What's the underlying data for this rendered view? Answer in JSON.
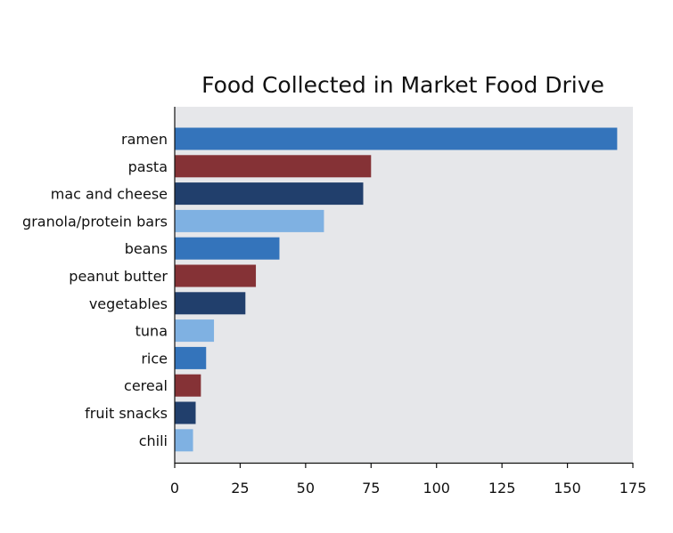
{
  "chart_data": {
    "type": "bar",
    "orientation": "horizontal",
    "title": "Food Collected in Market Food Drive",
    "xlabel": "",
    "ylabel": "",
    "categories": [
      "ramen",
      "pasta",
      "mac and cheese",
      "granola/protein bars",
      "beans",
      "peanut butter",
      "vegetables",
      "tuna",
      "rice",
      "cereal",
      "fruit snacks",
      "chili"
    ],
    "values": [
      169,
      75,
      72,
      57,
      40,
      31,
      27,
      15,
      12,
      10,
      8,
      7
    ],
    "xlim": [
      0,
      175
    ],
    "xticks": [
      0,
      25,
      50,
      75,
      100,
      125,
      150,
      175
    ],
    "grid": false,
    "legend": "none",
    "colors": [
      "#3474BB",
      "#853236",
      "#213F6C",
      "#7FB1E2"
    ]
  }
}
